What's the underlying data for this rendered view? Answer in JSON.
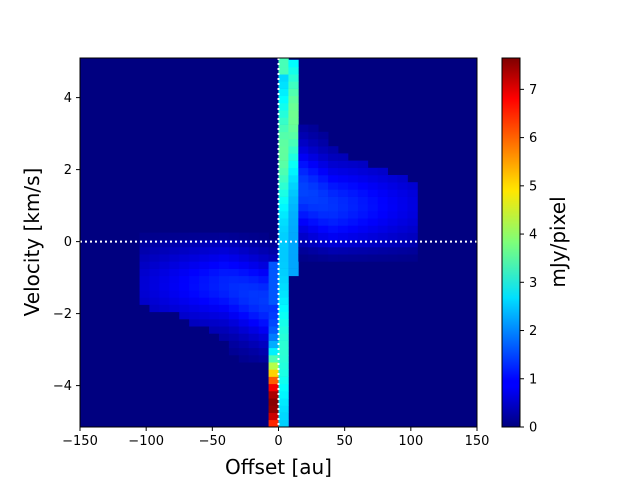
{
  "chart_data": {
    "type": "heatmap",
    "title": "",
    "xlabel": "Offset [au]",
    "ylabel": "Velocity [km/s]",
    "colorbar_label": "mJy/pixel",
    "colormap": "jet",
    "xlim": [
      -150,
      150
    ],
    "ylim": [
      -5.15,
      5.1
    ],
    "clim": [
      0,
      7.65
    ],
    "x_ticks": [
      -150,
      -100,
      -50,
      0,
      50,
      100,
      150
    ],
    "x_tick_labels": [
      "−150",
      "−100",
      "−50",
      "0",
      "50",
      "100",
      "150"
    ],
    "y_ticks": [
      -4,
      -2,
      0,
      2,
      4
    ],
    "y_tick_labels": [
      "−4",
      "−2",
      "0",
      "2",
      "4"
    ],
    "colorbar_ticks": [
      0,
      1,
      2,
      3,
      4,
      5,
      6,
      7
    ],
    "colorbar_tick_labels": [
      "0",
      "1",
      "2",
      "3",
      "4",
      "5",
      "6",
      "7"
    ],
    "pixel_size_au": 7.5,
    "channel_width_kms": 0.2,
    "reference_lines": [
      {
        "orientation": "horizontal",
        "value": 0,
        "style": "dotted",
        "color": "#ffffff"
      },
      {
        "orientation": "vertical",
        "value": 0,
        "style": "dotted",
        "color": "#ffffff"
      }
    ],
    "emission_model": {
      "central_column": {
        "x_range": [
          0,
          7.5
        ],
        "value_at_v_min": 2.2,
        "value_at_v_max": 2.5,
        "peak": 4.0
      },
      "blue_column": {
        "x_range": [
          -7.5,
          0
        ],
        "velocity_range": [
          -5.1,
          -0.6
        ],
        "peak_value": 7.5,
        "peak_velocity": -4.5
      },
      "red_column": {
        "x_range": [
          7.5,
          15
        ],
        "velocity_range": [
          -1.0,
          5.1
        ],
        "typical_value": 3.5
      },
      "red_lobe": {
        "offset_range": [
          0,
          100
        ],
        "velocity_range": [
          0,
          3.0
        ],
        "typical_value": 1.0
      },
      "blue_lobe": {
        "offset_range": [
          -100,
          0
        ],
        "velocity_range": [
          -3.3,
          0
        ],
        "typical_value": 1.0
      }
    }
  }
}
